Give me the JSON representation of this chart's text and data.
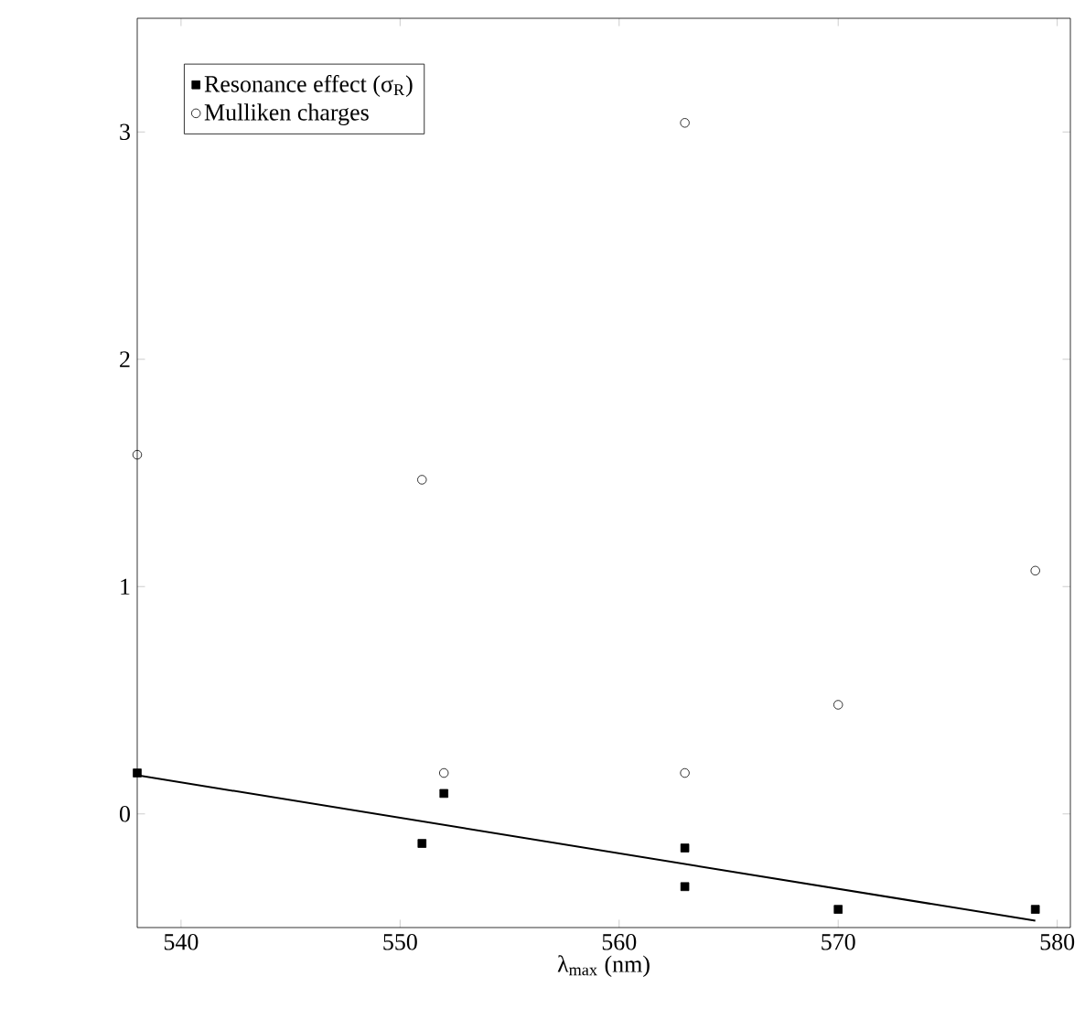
{
  "chart_data": {
    "type": "scatter",
    "xlabel": "λ$_{max}$ (nm)",
    "xlim": [
      538,
      580.6
    ],
    "ylim": [
      -0.5,
      3.5
    ],
    "xticks": [
      540,
      550,
      560,
      570,
      580
    ],
    "yticks": [
      0,
      1,
      2,
      3
    ],
    "grid": false,
    "legend": "top left",
    "series": [
      {
        "name": "Resonance effect (σ$_{R}$)",
        "color": "#000000",
        "marker": "square",
        "x": [
          538,
          551,
          552,
          563,
          563,
          570,
          579
        ],
        "values": [
          0.18,
          -0.13,
          0.09,
          -0.15,
          -0.32,
          -0.42,
          -0.42
        ]
      },
      {
        "name": "Mulliken charges",
        "color": "#000000",
        "marker": "circle",
        "x": [
          538,
          551,
          552,
          563,
          563,
          570,
          579
        ],
        "values": [
          1.58,
          1.47,
          0.18,
          3.04,
          0.18,
          0.48,
          1.07
        ]
      },
      {
        "type": "line",
        "color": "#000000",
        "marker": "none",
        "line_style": "solid",
        "x": [
          538,
          579
        ],
        "values": [
          0.17,
          -0.47
        ]
      }
    ]
  }
}
